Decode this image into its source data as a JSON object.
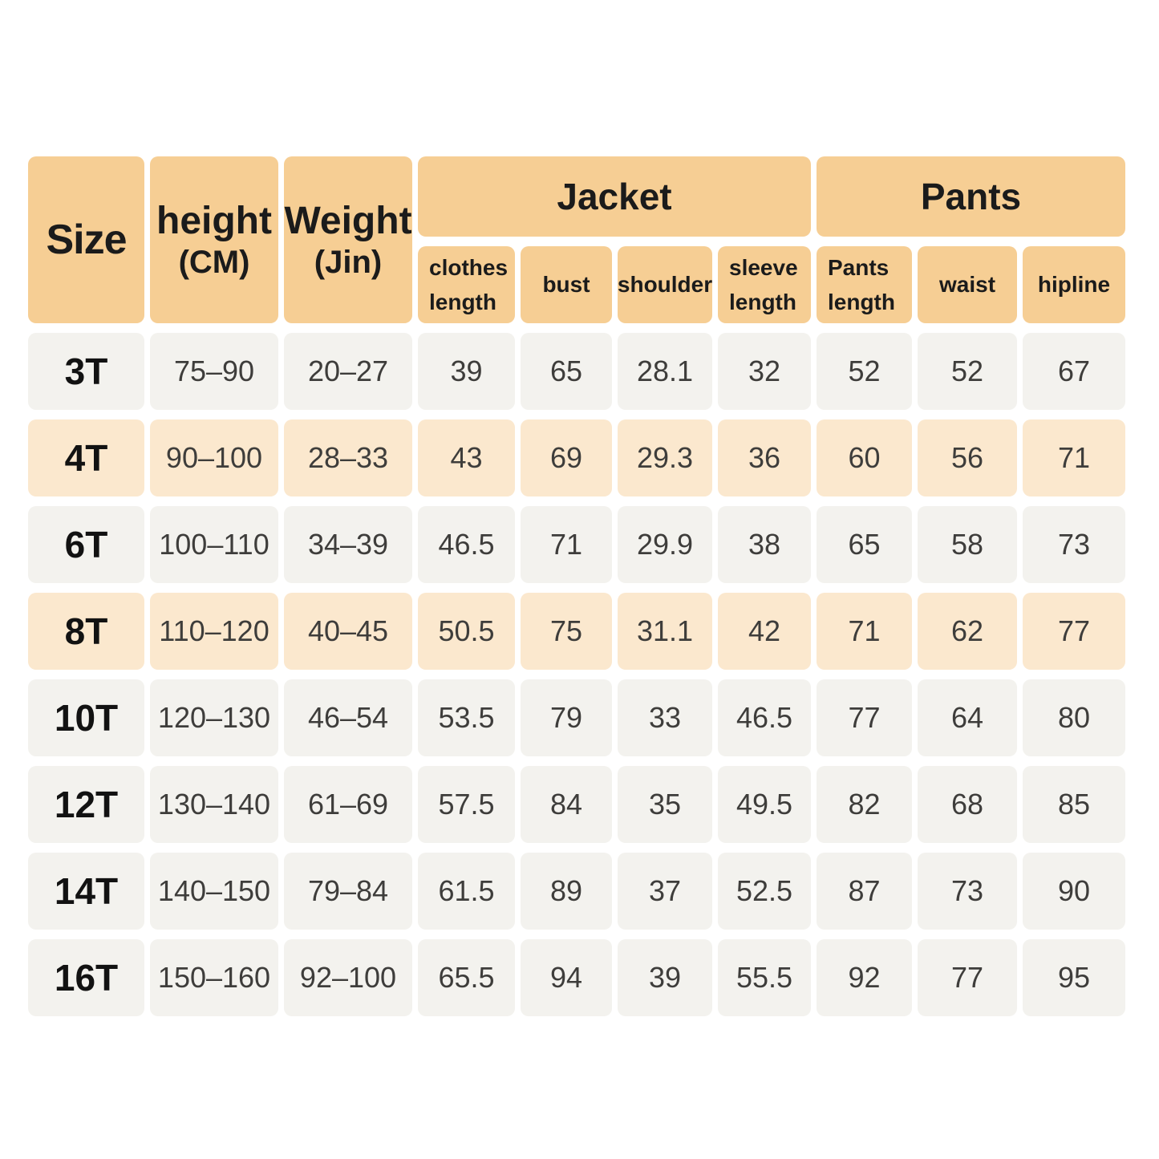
{
  "colors": {
    "page_background": "#ffffff",
    "header_bg": "#f6ce94",
    "row_bg": "#f3f2ee",
    "row_highlight_bg": "#fbe8ce",
    "header_text": "#1b1b1b",
    "data_text": "#3e3d3b",
    "highlighted_sizes": [
      "4T",
      "8T"
    ]
  },
  "header": {
    "size_label": "Size",
    "height_label": "height",
    "height_unit": "(CM)",
    "weight_label": "Weight",
    "weight_unit": "(Jin)",
    "jacket_group_label": "Jacket",
    "pants_group_label": "Pants",
    "sub_columns": [
      "clothes length",
      "bust",
      "shoulder",
      "sleeve length",
      "Pants length",
      "waist",
      "hipline"
    ]
  },
  "chart_data": {
    "type": "table",
    "columns": [
      "Size",
      "height (CM)",
      "Weight (Jin)",
      "clothes length",
      "bust",
      "shoulder",
      "sleeve length",
      "Pants length",
      "waist",
      "hipline"
    ],
    "column_groups": [
      {
        "label": "Jacket",
        "columns": [
          "clothes length",
          "bust",
          "shoulder",
          "sleeve length"
        ]
      },
      {
        "label": "Pants",
        "columns": [
          "Pants length",
          "waist",
          "hipline"
        ]
      }
    ],
    "rows": [
      [
        "3T",
        "75–90",
        "20–27",
        "39",
        "65",
        "28.1",
        "32",
        "52",
        "52",
        "67"
      ],
      [
        "4T",
        "90–100",
        "28–33",
        "43",
        "69",
        "29.3",
        "36",
        "60",
        "56",
        "71"
      ],
      [
        "6T",
        "100–110",
        "34–39",
        "46.5",
        "71",
        "29.9",
        "38",
        "65",
        "58",
        "73"
      ],
      [
        "8T",
        "110–120",
        "40–45",
        "50.5",
        "75",
        "31.1",
        "42",
        "71",
        "62",
        "77"
      ],
      [
        "10T",
        "120–130",
        "46–54",
        "53.5",
        "79",
        "33",
        "46.5",
        "77",
        "64",
        "80"
      ],
      [
        "12T",
        "130–140",
        "61–69",
        "57.5",
        "84",
        "35",
        "49.5",
        "82",
        "68",
        "85"
      ],
      [
        "14T",
        "140–150",
        "79–84",
        "61.5",
        "89",
        "37",
        "52.5",
        "87",
        "73",
        "90"
      ],
      [
        "16T",
        "150–160",
        "92–100",
        "65.5",
        "94",
        "39",
        "55.5",
        "92",
        "77",
        "95"
      ]
    ]
  }
}
